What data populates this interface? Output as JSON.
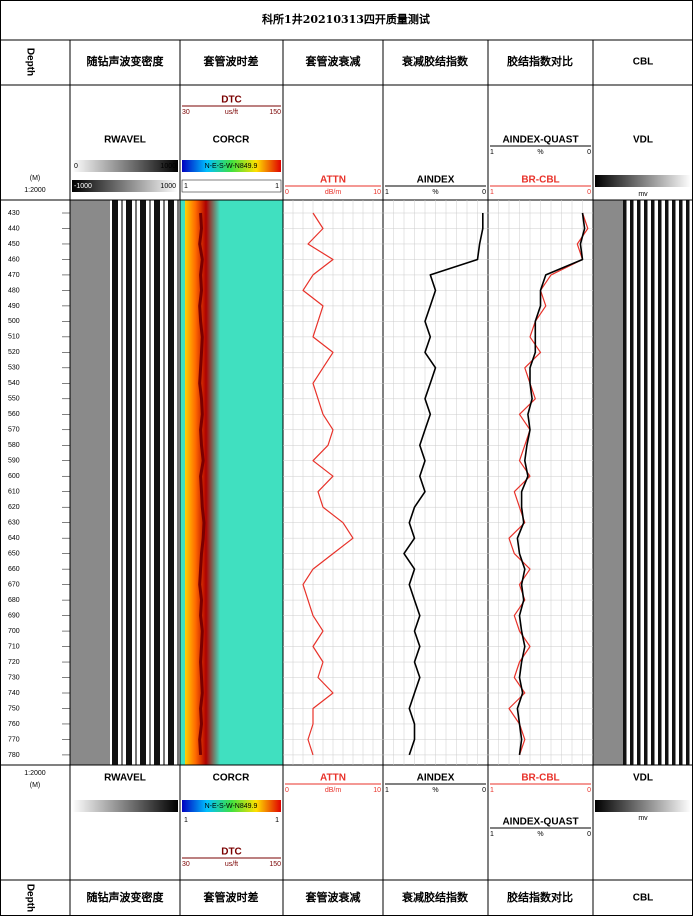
{
  "title": "科所1井20210313四开质量测试",
  "track_names": [
    "Depth",
    "随钻声波变密度",
    "套管波时差",
    "套管波衰减",
    "衰减胶结指数",
    "胶结指数对比",
    "CBL"
  ],
  "depth_unit": "(M)",
  "depth_scale": "1:2000",
  "image_tracks": {
    "rwavel": {
      "name": "RWAVEL",
      "bar_labels": [
        "0",
        "1000"
      ],
      "bar2_labels": [
        "-1000",
        "1000"
      ]
    },
    "corcr": {
      "name": "CORCR",
      "bar_text": "N-E-S-W-N849.9",
      "bar2_labels": [
        "1",
        "1"
      ]
    },
    "vdl": {
      "name": "VDL",
      "unit": "mv"
    }
  },
  "log_data": {
    "ylim": [
      421.6,
      786.5
    ],
    "depth_ticks": [
      430,
      440,
      450,
      460,
      470,
      480,
      490,
      500,
      510,
      520,
      530,
      540,
      550,
      560,
      570,
      580,
      590,
      600,
      610,
      620,
      630,
      640,
      650,
      660,
      670,
      680,
      690,
      700,
      710,
      720,
      730,
      740,
      750,
      760,
      770,
      780
    ],
    "series": [
      {
        "name": "ATTN",
        "unit": "dB/m",
        "color": "#e8322a",
        "xlim": [
          0,
          10
        ],
        "xticks": [
          0,
          10
        ],
        "values": [
          3,
          4,
          2.5,
          5,
          3,
          2,
          4,
          3.5,
          3,
          5,
          4,
          3,
          3.5,
          4,
          5,
          4.5,
          3,
          5,
          3.5,
          4,
          6,
          7,
          5,
          3,
          2,
          2.5,
          3,
          4,
          3,
          4,
          3.5,
          5,
          3,
          3,
          2.5,
          3
        ]
      },
      {
        "name": "AINDEX",
        "unit": "%",
        "color": "#000000",
        "xlim": [
          1,
          0
        ],
        "xticks": [
          1,
          0
        ],
        "values": [
          0.05,
          0.05,
          0.08,
          0.1,
          0.55,
          0.5,
          0.55,
          0.6,
          0.55,
          0.6,
          0.5,
          0.55,
          0.6,
          0.55,
          0.6,
          0.65,
          0.6,
          0.65,
          0.6,
          0.7,
          0.75,
          0.7,
          0.8,
          0.7,
          0.75,
          0.7,
          0.65,
          0.7,
          0.65,
          0.7,
          0.65,
          0.7,
          0.75,
          0.7,
          0.7,
          0.75
        ]
      },
      {
        "name": "BR-CBL",
        "color": "#e8322a",
        "xlim": [
          1,
          0
        ],
        "xticks": [
          1,
          0
        ],
        "values": [
          0.1,
          0.05,
          0.15,
          0.1,
          0.4,
          0.5,
          0.45,
          0.55,
          0.6,
          0.5,
          0.65,
          0.6,
          0.55,
          0.7,
          0.6,
          0.65,
          0.7,
          0.6,
          0.75,
          0.7,
          0.65,
          0.8,
          0.75,
          0.6,
          0.7,
          0.65,
          0.75,
          0.7,
          0.6,
          0.7,
          0.75,
          0.65,
          0.8,
          0.7,
          0.65,
          0.7
        ]
      },
      {
        "name": "AINDEX-QUAST",
        "unit": "%",
        "color": "#000000",
        "xlim": [
          1,
          0
        ],
        "xticks": [
          1,
          0
        ],
        "values": [
          0.1,
          0.08,
          0.12,
          0.1,
          0.45,
          0.5,
          0.5,
          0.55,
          0.55,
          0.55,
          0.6,
          0.6,
          0.58,
          0.62,
          0.6,
          0.63,
          0.65,
          0.62,
          0.68,
          0.68,
          0.66,
          0.72,
          0.7,
          0.65,
          0.68,
          0.66,
          0.7,
          0.68,
          0.65,
          0.68,
          0.7,
          0.67,
          0.72,
          0.7,
          0.68,
          0.7
        ]
      },
      {
        "name": "DTC",
        "unit": "us/ft",
        "color": "#7a0000",
        "xlim": [
          30,
          150
        ],
        "xticks": [
          30,
          150
        ],
        "values": [
          54,
          55,
          53,
          56,
          54,
          55,
          53,
          54,
          56,
          55,
          54,
          53,
          55,
          56,
          54,
          55,
          57,
          54,
          55,
          56,
          58,
          57,
          55,
          54,
          53,
          55,
          54,
          56,
          55,
          54,
          55,
          56,
          54,
          55,
          53,
          54
        ]
      }
    ]
  }
}
